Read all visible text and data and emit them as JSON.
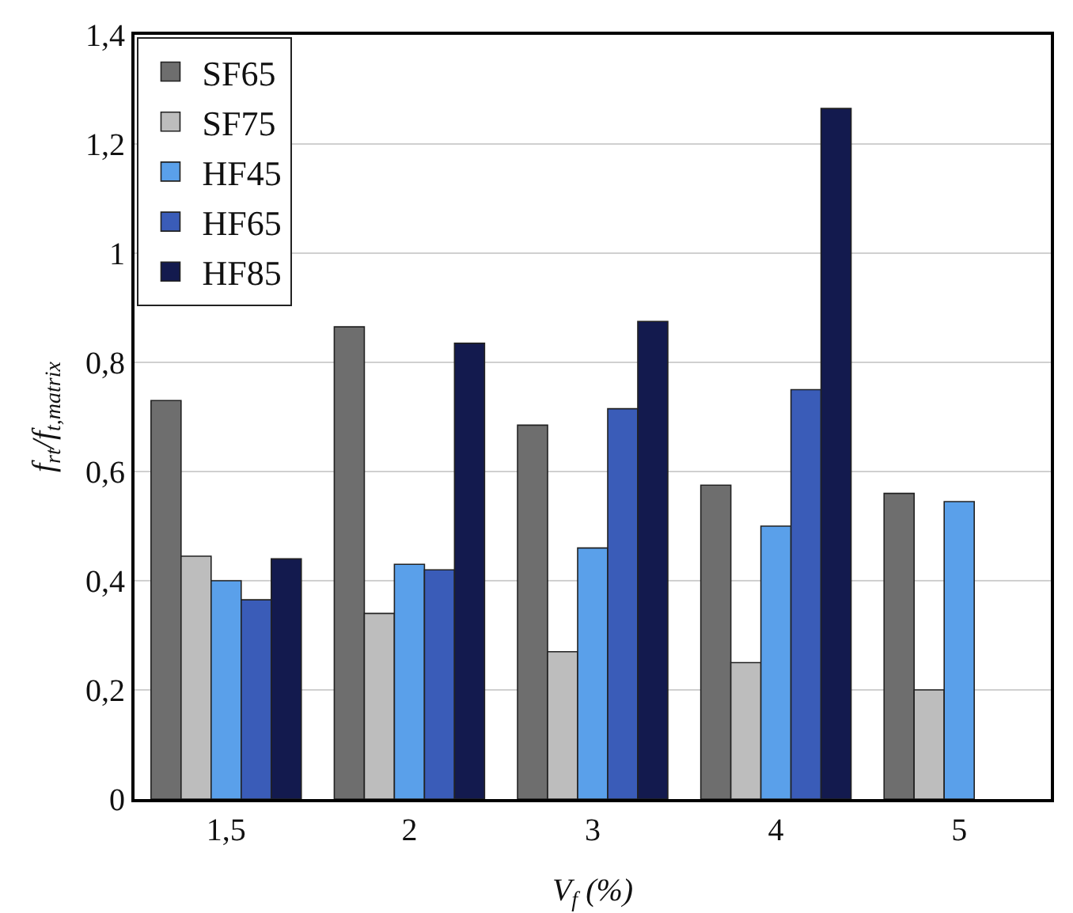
{
  "chart_data": {
    "type": "bar",
    "xlabel": "V$_{f}$ (%)",
    "ylabel": "f$_{rt}$/f$_{t,matrix}$",
    "categories": [
      "1,5",
      "2",
      "3",
      "4",
      "5"
    ],
    "series": [
      {
        "name": "SF65",
        "color": "#6e6e6e",
        "values": [
          0.73,
          0.865,
          0.685,
          0.575,
          0.56
        ]
      },
      {
        "name": "SF75",
        "color": "#bdbdbd",
        "values": [
          0.445,
          0.34,
          0.27,
          0.25,
          0.2
        ]
      },
      {
        "name": "HF45",
        "color": "#5aa0ea",
        "values": [
          0.4,
          0.43,
          0.46,
          0.5,
          0.545
        ]
      },
      {
        "name": "HF65",
        "color": "#3a5cb8",
        "values": [
          0.365,
          0.42,
          0.715,
          0.75,
          null
        ]
      },
      {
        "name": "HF85",
        "color": "#131a4e",
        "values": [
          0.44,
          0.835,
          0.875,
          1.265,
          null
        ]
      }
    ],
    "ylim": [
      0,
      1.4
    ],
    "yticks": [
      0,
      {
        "value": 0.2,
        "label": "0,2"
      },
      {
        "value": 0.4,
        "label": "0,4"
      },
      {
        "value": 0.6,
        "label": "0,6"
      },
      {
        "value": 0.8,
        "label": "0,8"
      },
      1,
      {
        "value": 1.2,
        "label": "1,2"
      },
      {
        "value": 1.4,
        "label": "1,4"
      }
    ],
    "grid": "y",
    "legend": "top left"
  }
}
